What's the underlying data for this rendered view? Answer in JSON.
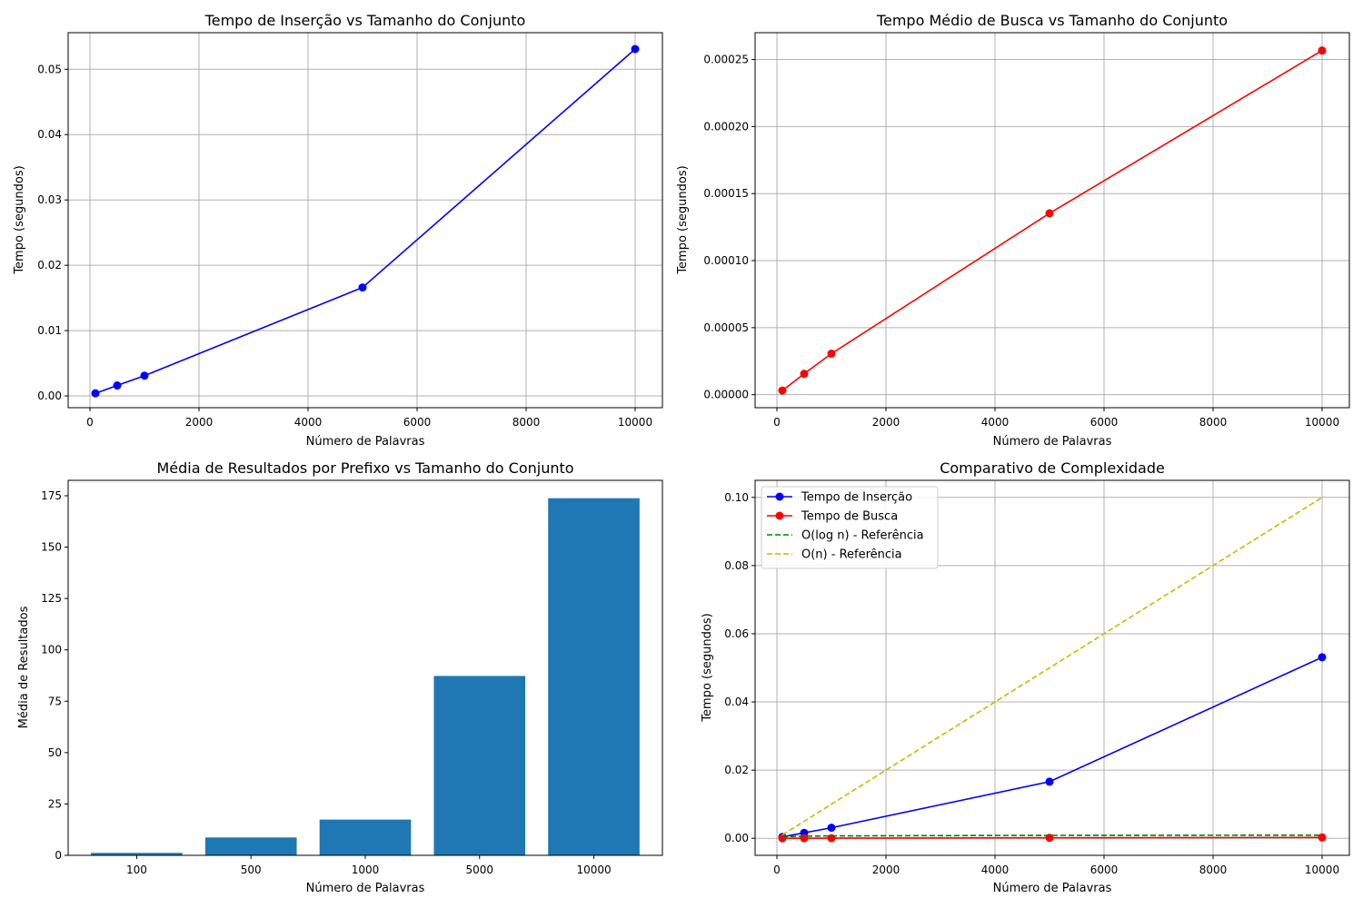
{
  "chart_data": [
    {
      "type": "line",
      "title": "Tempo de Inserção vs Tamanho do Conjunto",
      "xlabel": "Número de Palavras",
      "ylabel": "Tempo (segundos)",
      "grid": true,
      "xlim": [
        -400,
        10500
      ],
      "ylim": [
        -0.0018,
        0.0556
      ],
      "xticks": [
        0,
        2000,
        4000,
        6000,
        8000,
        10000
      ],
      "xtick_labels": [
        "0",
        "2000",
        "4000",
        "6000",
        "8000",
        "10000"
      ],
      "yticks": [
        0,
        0.01,
        0.02,
        0.03,
        0.04,
        0.05
      ],
      "ytick_labels": [
        "0.00",
        "0.01",
        "0.02",
        "0.03",
        "0.04",
        "0.05"
      ],
      "x": [
        100,
        500,
        1000,
        5000,
        10000
      ],
      "series": [
        {
          "values": [
            0.0004,
            0.0016,
            0.0031,
            0.0166,
            0.0531
          ],
          "color": "#0000ff",
          "marker": "circle"
        }
      ]
    },
    {
      "type": "line",
      "title": "Tempo Médio de Busca vs Tamanho do Conjunto",
      "xlabel": "Número de Palavras",
      "ylabel": "Tempo (segundos)",
      "grid": true,
      "xlim": [
        -400,
        10500
      ],
      "ylim": [
        -9.7e-06,
        0.00027
      ],
      "xticks": [
        0,
        2000,
        4000,
        6000,
        8000,
        10000
      ],
      "xtick_labels": [
        "0",
        "2000",
        "4000",
        "6000",
        "8000",
        "10000"
      ],
      "yticks": [
        0,
        5e-05,
        0.0001,
        0.00015,
        0.0002,
        0.00025
      ],
      "ytick_labels": [
        "0.00000",
        "0.00005",
        "0.00010",
        "0.00015",
        "0.00020",
        "0.00025"
      ],
      "x": [
        100,
        500,
        1000,
        5000,
        10000
      ],
      "series": [
        {
          "values": [
            3.1e-06,
            1.56e-05,
            3.06e-05,
            0.0001353,
            0.0002567
          ],
          "color": "#ff0000",
          "marker": "circle"
        }
      ]
    },
    {
      "type": "bar",
      "title": "Média de Resultados por Prefixo vs Tamanho do Conjunto",
      "xlabel": "Número de Palavras",
      "ylabel": "Média de Resultados",
      "grid": false,
      "categories": [
        "100",
        "500",
        "1000",
        "5000",
        "10000"
      ],
      "values": [
        1.2,
        8.7,
        17.4,
        87.3,
        173.8
      ],
      "ylim": [
        0,
        182.5
      ],
      "yticks": [
        0,
        25,
        50,
        75,
        100,
        125,
        150,
        175
      ],
      "ytick_labels": [
        "0",
        "25",
        "50",
        "75",
        "100",
        "125",
        "150",
        "175"
      ],
      "color": "#1f77b4"
    },
    {
      "type": "line",
      "title": "Comparativo de Complexidade",
      "xlabel": "Número de Palavras",
      "ylabel": "Tempo (segundos)",
      "grid": true,
      "legend": "top-left",
      "xlim": [
        -400,
        10500
      ],
      "ylim": [
        -0.005,
        0.105
      ],
      "xticks": [
        0,
        2000,
        4000,
        6000,
        8000,
        10000
      ],
      "xtick_labels": [
        "0",
        "2000",
        "4000",
        "6000",
        "8000",
        "10000"
      ],
      "yticks": [
        0,
        0.02,
        0.04,
        0.06,
        0.08,
        0.1
      ],
      "ytick_labels": [
        "0.00",
        "0.02",
        "0.04",
        "0.06",
        "0.08",
        "0.10"
      ],
      "x": [
        100,
        500,
        1000,
        5000,
        10000
      ],
      "series": [
        {
          "name": "Tempo de Inserção",
          "values": [
            0.0004,
            0.0016,
            0.0031,
            0.0166,
            0.0531
          ],
          "color": "#0000ff",
          "marker": "circle",
          "dash": "solid"
        },
        {
          "name": "Tempo de Busca",
          "values": [
            3.1e-06,
            1.56e-05,
            3.06e-05,
            0.0001353,
            0.0002567
          ],
          "color": "#ff0000",
          "marker": "circle",
          "dash": "solid"
        },
        {
          "name": "O(log n) - Referência",
          "values": [
            0.00046,
            0.00062,
            0.00069,
            0.00085,
            0.00092
          ],
          "color": "#008000",
          "marker": "none",
          "dash": "dashed"
        },
        {
          "name": "O(n) - Referência",
          "values": [
            0.001,
            0.005,
            0.01,
            0.05,
            0.1
          ],
          "color": "#bfbf00",
          "marker": "none",
          "dash": "dashed"
        }
      ]
    }
  ]
}
